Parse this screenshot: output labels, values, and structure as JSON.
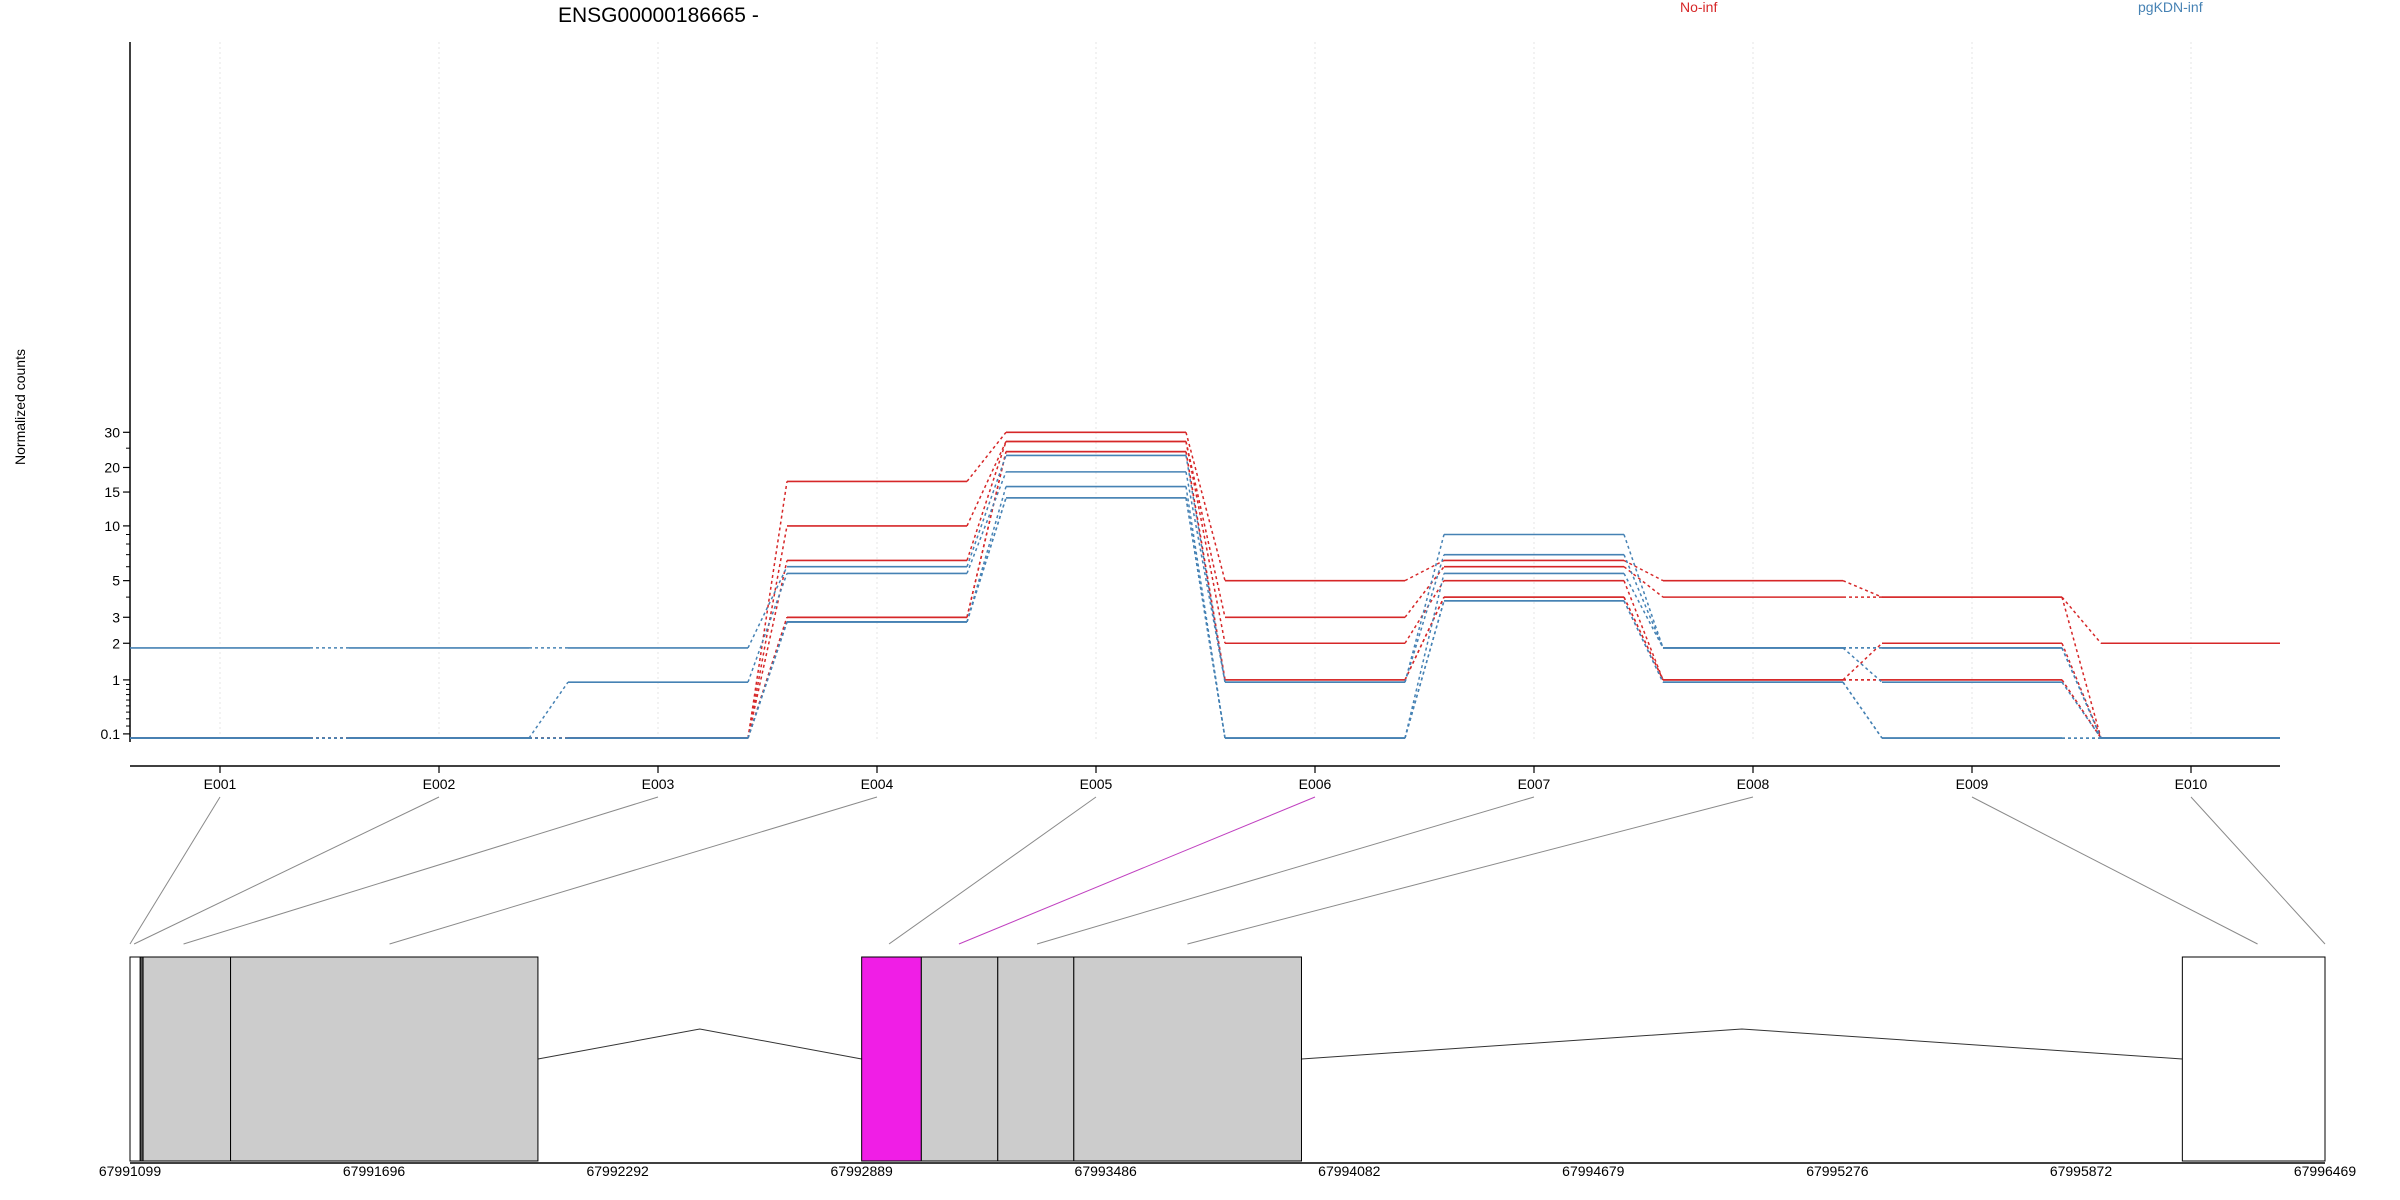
{
  "chart_data": {
    "type": "line",
    "title": "ENSG00000186665 -",
    "ylabel": "Normalized counts",
    "xlabel": "",
    "y_scale": "log(1 + y)",
    "y_ticks": [
      0.1,
      1,
      2,
      3,
      5,
      10,
      15,
      20,
      30
    ],
    "y_tick_labels": [
      "0.1",
      "1",
      "2",
      "3",
      "5",
      "10",
      "15",
      "20",
      "30"
    ],
    "categories": [
      "E001",
      "E002",
      "E003",
      "E004",
      "E005",
      "E006",
      "E007",
      "E008",
      "E009",
      "E010"
    ],
    "highlighted_exon": "E006",
    "grid": "vertical dotted",
    "legend": [
      {
        "name": "No-inf",
        "color": "#d62728"
      },
      {
        "name": "pgKDN-inf",
        "color": "#4682b4"
      }
    ],
    "series": [
      {
        "group": "No-inf",
        "values": [
          0.05,
          0.05,
          0.05,
          17,
          30,
          5,
          6.5,
          5,
          4,
          2
        ]
      },
      {
        "group": "No-inf",
        "values": [
          0.05,
          0.05,
          0.05,
          10,
          27,
          3,
          6,
          4,
          4,
          0.05
        ]
      },
      {
        "group": "No-inf",
        "values": [
          0.05,
          0.05,
          0.05,
          6.5,
          27,
          2,
          5,
          1,
          2,
          0.05
        ]
      },
      {
        "group": "No-inf",
        "values": [
          0.05,
          0.05,
          0.05,
          3,
          24,
          1,
          4,
          1,
          1,
          0.05
        ]
      },
      {
        "group": "No-inf",
        "values": [
          0.05,
          0.05,
          0.05,
          3,
          24,
          1,
          4,
          1,
          1,
          0.05
        ]
      },
      {
        "group": "pgKDN-inf",
        "values": [
          1.85,
          1.85,
          1.85,
          6,
          23,
          0.95,
          9,
          1.85,
          1.85,
          0.05
        ]
      },
      {
        "group": "pgKDN-inf",
        "values": [
          0.05,
          0.05,
          0.95,
          5.5,
          19,
          0.95,
          7,
          1.85,
          1.85,
          0.05
        ]
      },
      {
        "group": "pgKDN-inf",
        "values": [
          0.05,
          0.05,
          0.05,
          2.8,
          16,
          0.05,
          5.5,
          1.85,
          0.95,
          0.05
        ]
      },
      {
        "group": "pgKDN-inf",
        "values": [
          0.05,
          0.05,
          0.05,
          2.8,
          14,
          0.05,
          3.8,
          0.95,
          0.05,
          0.05
        ]
      },
      {
        "group": "pgKDN-inf",
        "values": [
          0.05,
          0.05,
          0.05,
          2.8,
          14,
          0.05,
          3.8,
          0.95,
          0.05,
          0.05
        ]
      }
    ],
    "genomic_axis": {
      "ticks": [
        "67991099",
        "67991696",
        "67992292",
        "67992889",
        "67993486",
        "67994082",
        "67994679",
        "67995276",
        "67995872",
        "67996469"
      ],
      "start": 67991099,
      "end": 67996469
    },
    "gene_model": {
      "exons": [
        {
          "start": 67991099,
          "end": 67991124,
          "fill": "#ffffff"
        },
        {
          "start": 67991124,
          "end": 67991131,
          "fill": "#555555"
        },
        {
          "start": 67991131,
          "end": 67991345,
          "fill": "#cccccc"
        },
        {
          "start": 67991345,
          "end": 67992097,
          "fill": "#cccccc"
        },
        {
          "start": 67992889,
          "end": 67993035,
          "fill": "#f01ee6"
        },
        {
          "start": 67993035,
          "end": 67993222,
          "fill": "#cccccc"
        },
        {
          "start": 67993222,
          "end": 67993408,
          "fill": "#cccccc"
        },
        {
          "start": 67993408,
          "end": 67993965,
          "fill": "#cccccc"
        },
        {
          "start": 67996120,
          "end": 67996469,
          "fill": "#ffffff"
        }
      ],
      "introns": [
        {
          "start": 67992097,
          "end": 67992889
        },
        {
          "start": 67993965,
          "end": 67996120
        }
      ],
      "connector_targets": [
        67991099,
        67991109,
        67991230,
        67991734,
        67992956,
        67993127,
        67993318,
        67993686,
        67996304,
        67996469
      ]
    }
  }
}
